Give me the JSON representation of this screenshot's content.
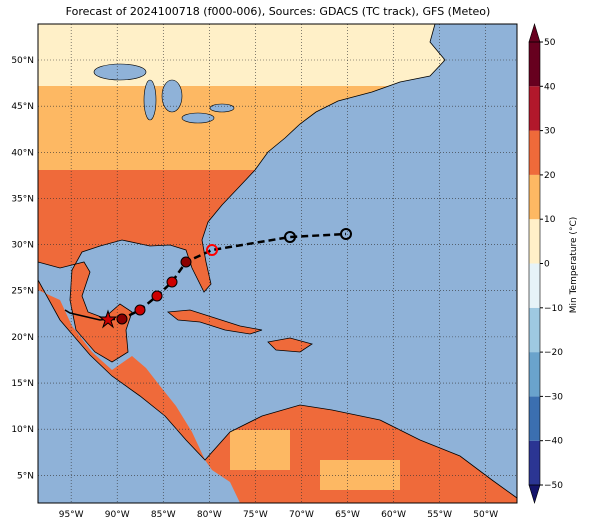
{
  "title": "Forecast of 2024100718 (f000-006), Sources: GDACS (TC track), GFS (Meteo)",
  "map": {
    "lon_range": [
      -98.6,
      -46.6
    ],
    "lat_range": [
      2,
      53.9
    ],
    "lat_ticks": [
      {
        "value": 50,
        "label": "50°N"
      },
      {
        "value": 45,
        "label": "45°N"
      },
      {
        "value": 40,
        "label": "40°N"
      },
      {
        "value": 35,
        "label": "35°N"
      },
      {
        "value": 30,
        "label": "30°N"
      },
      {
        "value": 25,
        "label": "25°N"
      },
      {
        "value": 20,
        "label": "20°N"
      },
      {
        "value": 15,
        "label": "15°N"
      },
      {
        "value": 10,
        "label": "10°N"
      },
      {
        "value": 5,
        "label": "5°N"
      }
    ],
    "lon_ticks": [
      {
        "value": -95,
        "label": "95°W"
      },
      {
        "value": -90,
        "label": "90°W"
      },
      {
        "value": -85,
        "label": "85°W"
      },
      {
        "value": -80,
        "label": "80°W"
      },
      {
        "value": -75,
        "label": "75°W"
      },
      {
        "value": -70,
        "label": "70°W"
      },
      {
        "value": -65,
        "label": "65°W"
      },
      {
        "value": -60,
        "label": "60°W"
      },
      {
        "value": -55,
        "label": "55°W"
      },
      {
        "value": -50,
        "label": "50°W"
      }
    ]
  },
  "colorbar": {
    "label": "Min Temperature (°C)",
    "range": [
      -50,
      50
    ],
    "ticks": [
      {
        "value": -50,
        "label": "−50"
      },
      {
        "value": -40,
        "label": "−40"
      },
      {
        "value": -30,
        "label": "−30"
      },
      {
        "value": -20,
        "label": "−20"
      },
      {
        "value": -10,
        "label": "−10"
      },
      0,
      10,
      20,
      30,
      40,
      50
    ],
    "colors": [
      "#2b3593",
      "#3b6fb0",
      "#6aa3cc",
      "#9ec9e1",
      "#e6f3f8",
      "#fff0c8",
      "#fdb863",
      "#ef6a3a",
      "#b2182b",
      "#67001f"
    ],
    "extend_colors": [
      "#14146b",
      "#67001f"
    ]
  }
}
